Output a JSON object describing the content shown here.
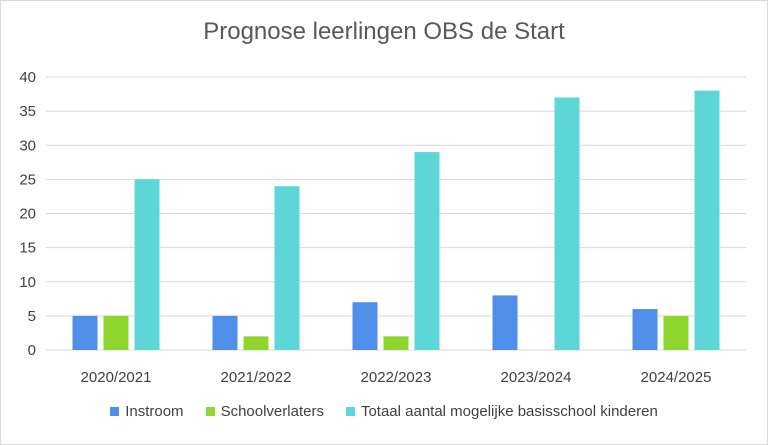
{
  "chart_data": {
    "type": "bar",
    "title": "Prognose leerlingen OBS de Start",
    "xlabel": "",
    "ylabel": "",
    "categories": [
      "2020/2021",
      "2021/2022",
      "2022/2023",
      "2023/2024",
      "2024/2025"
    ],
    "series": [
      {
        "name": "Instroom",
        "values": [
          5,
          5,
          7,
          8,
          6
        ],
        "color": "#4f8fea"
      },
      {
        "name": "Schoolverlaters",
        "values": [
          5,
          2,
          2,
          0,
          5
        ],
        "color": "#8fd62e"
      },
      {
        "name": "Totaal aantal mogelijke basisschool kinderen",
        "values": [
          25,
          24,
          29,
          37,
          38
        ],
        "color": "#5cd6d6"
      }
    ],
    "ylim": [
      0,
      40
    ],
    "yticks": [
      0,
      5,
      10,
      15,
      20,
      25,
      30,
      35,
      40
    ],
    "grid": true,
    "legend_position": "bottom"
  }
}
